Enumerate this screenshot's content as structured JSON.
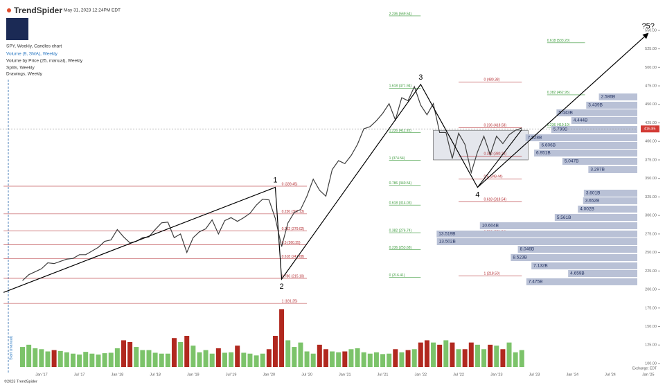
{
  "header": {
    "brand": "TrendSpider",
    "timestamp": "May 31, 2023 12:24PM EDT",
    "legend": [
      "SPY, Weekly, Candles chart",
      "Volume (9, SMA), Weekly",
      "Volume by Price (25, manual), Weekly",
      "Splits, Weekly",
      "Drawings, Weekly"
    ],
    "start_marker": "Start (manual)",
    "copyright": "©2023 TrendSpider",
    "exchange": "Exchange: EDT"
  },
  "chart_data": {
    "type": "line",
    "x": [
      "2016-10",
      "2016-11",
      "2016-12",
      "2017-01",
      "2017-02",
      "2017-03",
      "2017-04",
      "2017-05",
      "2017-06",
      "2017-07",
      "2017-08",
      "2017-09",
      "2017-10",
      "2017-11",
      "2017-12",
      "2018-01",
      "2018-02",
      "2018-03",
      "2018-04",
      "2018-05",
      "2018-06",
      "2018-07",
      "2018-08",
      "2018-09",
      "2018-10",
      "2018-11",
      "2018-12",
      "2019-01",
      "2019-02",
      "2019-03",
      "2019-04",
      "2019-05",
      "2019-06",
      "2019-07",
      "2019-08",
      "2019-09",
      "2019-10",
      "2019-11",
      "2019-12",
      "2020-01",
      "2020-02",
      "2020-03",
      "2020-04",
      "2020-05",
      "2020-06",
      "2020-07",
      "2020-08",
      "2020-09",
      "2020-10",
      "2020-11",
      "2020-12",
      "2021-01",
      "2021-02",
      "2021-03",
      "2021-04",
      "2021-05",
      "2021-06",
      "2021-07",
      "2021-08",
      "2021-09",
      "2021-10",
      "2021-11",
      "2021-12",
      "2022-01",
      "2022-02",
      "2022-03",
      "2022-04",
      "2022-05",
      "2022-06",
      "2022-07",
      "2022-08",
      "2022-09",
      "2022-10",
      "2022-11",
      "2022-12",
      "2023-01",
      "2023-02",
      "2023-03",
      "2023-04",
      "2023-05"
    ],
    "series": [
      {
        "color": "#3d3d3d",
        "values": [
          212,
          220,
          224,
          228,
          236,
          235,
          238,
          241,
          242,
          247,
          247,
          252,
          257,
          265,
          267,
          281,
          271,
          263,
          265,
          270,
          271,
          281,
          290,
          291,
          270,
          275,
          250,
          270,
          278,
          282,
          294,
          275,
          293,
          297,
          292,
          297,
          303,
          314,
          322,
          321,
          296,
          258,
          290,
          304,
          308,
          326,
          349,
          334,
          326,
          362,
          374,
          370,
          381,
          396,
          417,
          420,
          428,
          438,
          451,
          429,
          459,
          455,
          474,
          449,
          436,
          451,
          412,
          412,
          377,
          411,
          396,
          358,
          386,
          407,
          382,
          407,
          397,
          409,
          415,
          418
        ]
      },
      {
        "axis": "y2",
        "up_color": "#7cc36a",
        "down_color": "#b1281f",
        "values": [
          450,
          500,
          420,
          400,
          350,
          380,
          360,
          330,
          300,
          280,
          340,
          300,
          280,
          310,
          320,
          420,
          600,
          560,
          450,
          380,
          380,
          320,
          300,
          300,
          650,
          560,
          700,
          480,
          330,
          380,
          300,
          420,
          320,
          330,
          480,
          320,
          300,
          260,
          300,
          400,
          700,
          1300,
          600,
          450,
          550,
          350,
          300,
          500,
          400,
          350,
          330,
          350,
          400,
          420,
          330,
          300,
          330,
          290,
          300,
          400,
          330,
          380,
          400,
          550,
          600,
          550,
          500,
          600,
          550,
          400,
          400,
          550,
          500,
          400,
          500,
          480,
          400,
          550,
          330,
          380
        ]
      }
    ],
    "xlim": [
      "2016-06",
      "2025-03"
    ],
    "xticks": [
      {
        "value": "2017-01",
        "label": "Jan '17"
      },
      {
        "value": "2017-07",
        "label": "Jul '17"
      },
      {
        "value": "2018-01",
        "label": "Jan '18"
      },
      {
        "value": "2018-07",
        "label": "Jul '18"
      },
      {
        "value": "2019-01",
        "label": "Jan '19"
      },
      {
        "value": "2019-07",
        "label": "Jul '19"
      },
      {
        "value": "2020-01",
        "label": "Jan '20"
      },
      {
        "value": "2020-07",
        "label": "Jul '20"
      },
      {
        "value": "2021-01",
        "label": "Jan '21"
      },
      {
        "value": "2021-07",
        "label": "Jul '21"
      },
      {
        "value": "2022-01",
        "label": "Jan '22"
      },
      {
        "value": "2022-07",
        "label": "Jul '22"
      },
      {
        "value": "2023-01",
        "label": "Jan '23"
      },
      {
        "value": "2023-07",
        "label": "Jul '23"
      },
      {
        "value": "2024-01",
        "label": "Jan '24"
      },
      {
        "value": "2024-07",
        "label": "Jul '24"
      },
      {
        "value": "2025-01",
        "label": "Jan '25"
      }
    ],
    "ylim": [
      71,
      591
    ],
    "yticks": [
      {
        "value": 100,
        "label": "100.00"
      },
      {
        "value": 125,
        "label": "125.00"
      },
      {
        "value": 150,
        "label": "150.00"
      },
      {
        "value": 175,
        "label": "175.00"
      },
      {
        "value": 200,
        "label": "200.00"
      },
      {
        "value": 225,
        "label": "225.00"
      },
      {
        "value": 250,
        "label": "250.00"
      },
      {
        "value": 275,
        "label": "275.00"
      },
      {
        "value": 300,
        "label": "300.00"
      },
      {
        "value": 325,
        "label": "325.00"
      },
      {
        "value": 350,
        "label": "350.00"
      },
      {
        "value": 375,
        "label": "375.00"
      },
      {
        "value": 400,
        "label": "400.00"
      },
      {
        "value": 425,
        "label": "425.00"
      },
      {
        "value": 450,
        "label": "450.00"
      },
      {
        "value": 475,
        "label": "475.00"
      },
      {
        "value": 500,
        "label": "500.00"
      },
      {
        "value": 525,
        "label": "525.00"
      },
      {
        "value": 550,
        "label": "550.00"
      }
    ],
    "y2lim": [
      0,
      1400
    ],
    "last_price": 416.85,
    "last_price_color": "#d33b35",
    "waves": [
      {
        "x": "2016-07",
        "value": 196,
        "label": null
      },
      {
        "x": "2020-02",
        "value": 338,
        "label": "1"
      },
      {
        "x": "2020-03",
        "value": 214,
        "label": "2"
      },
      {
        "x": "2022-01",
        "value": 477,
        "label": "3"
      },
      {
        "x": "2022-10",
        "value": 338,
        "label": "4"
      },
      {
        "x": "2025-01",
        "value": 546,
        "label": "?5?"
      }
    ],
    "channel": [
      {
        "x": "2022-10",
        "value": 338
      },
      {
        "x": "2023-05",
        "value": 416
      }
    ],
    "zone": {
      "from": "2022-03",
      "to": "2023-06",
      "low": 375,
      "high": 415
    },
    "fib_sets": [
      {
        "color": "#b2292e",
        "from": "2016-07",
        "to": "2020-07",
        "label_at": "2020-03",
        "levels": [
          {
            "label": "0 (339.45)",
            "value": 339.45
          },
          {
            "label": "0.236 (302.13)",
            "value": 302.13
          },
          {
            "label": "0.382 (279.02)",
            "value": 279.02
          },
          {
            "label": "0.5 (260.35)",
            "value": 260.35
          },
          {
            "label": "0.618 (241.68)",
            "value": 241.68
          },
          {
            "label": "0.786 (215.10)",
            "value": 215.1
          },
          {
            "label": "1 (181.25)",
            "value": 181.25
          }
        ]
      },
      {
        "color": "#3a9a3a",
        "from": "2021-08",
        "to": "2022-01",
        "label_at": "2021-08",
        "levels": [
          {
            "label": "2.236 (569.54)",
            "value": 569.54
          },
          {
            "label": "1.618 (471.94)",
            "value": 471.94
          },
          {
            "label": "1.236 (411.93)",
            "value": 411.93
          },
          {
            "label": "1 (374.54)",
            "value": 374.54
          },
          {
            "label": "0.786 (340.54)",
            "value": 340.54
          },
          {
            "label": "0.618 (314.03)",
            "value": 314.03
          },
          {
            "label": "0.382 (276.74)",
            "value": 276.74
          },
          {
            "label": "0.236 (253.68)",
            "value": 253.68
          },
          {
            "label": "0 (216.41)",
            "value": 216.41
          }
        ]
      },
      {
        "color": "#b2292e",
        "from": "2022-07",
        "to": "2023-05",
        "label_at": "2022-11",
        "levels": [
          {
            "label": "0 (480.38)",
            "value": 480.38
          },
          {
            "label": "0.236 (418.58)",
            "value": 418.58
          },
          {
            "label": "0.382 (380.24)",
            "value": 380.24
          },
          {
            "label": "0.5 (349.44)",
            "value": 349.44
          },
          {
            "label": "0.618 (318.54)",
            "value": 318.54
          },
          {
            "label": "0.786 (274.54)",
            "value": 274.54
          },
          {
            "label": "1 (218.50)",
            "value": 218.5
          }
        ]
      },
      {
        "color": "#3a9a3a",
        "from": "2023-09",
        "to": "2024-03",
        "label_at": "2023-09",
        "levels": [
          {
            "label": "0.618 (533.20)",
            "value": 533.2
          },
          {
            "label": "0.382 (462.95)",
            "value": 462.95
          },
          {
            "label": "0.236 (419.10)",
            "value": 419.1
          }
        ]
      }
    ],
    "volume_profile": {
      "color": "#b9c1d6",
      "xlim": [
        0,
        14
      ],
      "prices": [
        460.1,
        448.9,
        438.6,
        428.3,
        416.1,
        404.9,
        394.6,
        384.3,
        373.1,
        361.9,
        330.1,
        319.8,
        308.6,
        297.3,
        286.1,
        274.9,
        264.6,
        254.3,
        243.1,
        231.9,
        221.6,
        210.4
      ],
      "values": [
        2.586,
        3.439,
        5.443,
        4.444,
        5.799,
        7.528,
        6.606,
        6.951,
        5.047,
        3.297,
        3.601,
        3.652,
        4.002,
        5.561,
        10.604,
        13.519,
        13.502,
        8.046,
        8.523,
        7.132,
        4.659,
        7.475
      ],
      "value_labels": [
        "2.586B",
        "3.439B",
        "5.443B",
        "4.444B",
        "5.799B",
        "7.528B",
        "6.606B",
        "6.951B",
        "5.047B",
        "3.297B",
        "3.601B",
        "3.652B",
        "4.002B",
        "5.561B",
        "10.604B",
        "13.519B",
        "13.502B",
        "8.046B",
        "8.523B",
        "7.132B",
        "4.659B",
        "7.475B"
      ]
    }
  }
}
